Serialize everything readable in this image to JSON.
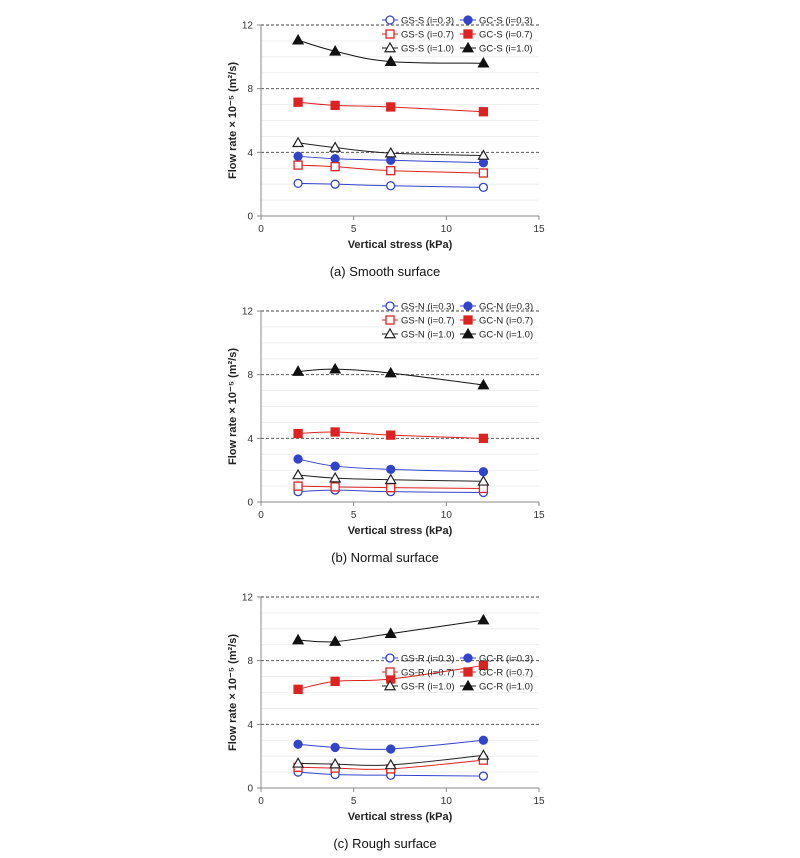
{
  "chart_data": [
    {
      "type": "line",
      "caption": "(a)  Smooth  surface",
      "xlabel": "Vertical stress (kPa)",
      "ylabel": "Flow rate × 10⁻⁵ (m²/s)",
      "xlim": [
        0,
        15
      ],
      "ylim": [
        0,
        12
      ],
      "xticks": [
        0,
        5,
        10,
        15
      ],
      "yticks": [
        0,
        4,
        8,
        12
      ],
      "grid": "horizontal dashed at 4, 8, 12",
      "legend": "top-right",
      "x": [
        2,
        4,
        7,
        12
      ],
      "series": [
        {
          "name": "GS-S (i=0.3)",
          "color": "#3344cc",
          "marker": "circle-open",
          "values": [
            2.05,
            2.0,
            1.9,
            1.8
          ]
        },
        {
          "name": "GC-S (i=0.3)",
          "color": "#3344cc",
          "marker": "circle-filled",
          "values": [
            3.75,
            3.6,
            3.5,
            3.35
          ]
        },
        {
          "name": "GS-S (i=0.7)",
          "color": "#dd2222",
          "marker": "square-open",
          "values": [
            3.2,
            3.1,
            2.85,
            2.7
          ]
        },
        {
          "name": "GC-S (i=0.7)",
          "color": "#dd2222",
          "marker": "square-filled",
          "values": [
            7.15,
            6.95,
            6.85,
            6.55
          ]
        },
        {
          "name": "GS-S (i=1.0)",
          "color": "#222222",
          "marker": "triangle-open",
          "values": [
            4.6,
            4.3,
            3.95,
            3.8
          ]
        },
        {
          "name": "GC-S (i=1.0)",
          "color": "#111111",
          "marker": "triangle-filled",
          "values": [
            11.05,
            10.35,
            9.7,
            9.6
          ]
        }
      ]
    },
    {
      "type": "line",
      "caption": "(b)  Normal  surface",
      "xlabel": "Vertical stress (kPa)",
      "ylabel": "Flow rate × 10⁻⁵ (m²/s)",
      "xlim": [
        0,
        15
      ],
      "ylim": [
        0,
        12
      ],
      "xticks": [
        0,
        5,
        10,
        15
      ],
      "yticks": [
        0,
        4,
        8,
        12
      ],
      "grid": "horizontal dashed at 4, 8, 12",
      "legend": "top-right",
      "x": [
        2,
        4,
        7,
        12
      ],
      "series": [
        {
          "name": "GS-N (i=0.3)",
          "color": "#3344cc",
          "marker": "circle-open",
          "values": [
            0.65,
            0.75,
            0.65,
            0.6
          ]
        },
        {
          "name": "GC-N (i=0.3)",
          "color": "#3344cc",
          "marker": "circle-filled",
          "values": [
            2.7,
            2.25,
            2.05,
            1.9
          ]
        },
        {
          "name": "GS-N (i=0.7)",
          "color": "#dd2222",
          "marker": "square-open",
          "values": [
            1.0,
            0.95,
            0.9,
            0.85
          ]
        },
        {
          "name": "GC-N (i=0.7)",
          "color": "#dd2222",
          "marker": "square-filled",
          "values": [
            4.3,
            4.4,
            4.2,
            4.0
          ]
        },
        {
          "name": "GS-N (i=1.0)",
          "color": "#222222",
          "marker": "triangle-open",
          "values": [
            1.7,
            1.5,
            1.4,
            1.3
          ]
        },
        {
          "name": "GC-N (i=1.0)",
          "color": "#111111",
          "marker": "triangle-filled",
          "values": [
            8.2,
            8.35,
            8.1,
            7.35
          ]
        }
      ]
    },
    {
      "type": "line",
      "caption": "(c)  Rough  surface",
      "xlabel": "Vertical stress (kPa)",
      "ylabel": "Flow rate × 10⁻⁵ (m²/s)",
      "xlim": [
        0,
        15
      ],
      "ylim": [
        0,
        12
      ],
      "xticks": [
        0,
        5,
        10,
        15
      ],
      "yticks": [
        0,
        4,
        8,
        12
      ],
      "grid": "horizontal dashed at 4, 8, 12",
      "legend": "middle-right",
      "x": [
        2,
        4,
        7,
        12
      ],
      "series": [
        {
          "name": "GS-R (i=0.3)",
          "color": "#3344cc",
          "marker": "circle-open",
          "values": [
            1.0,
            0.85,
            0.8,
            0.75
          ]
        },
        {
          "name": "GC-R (i=0.3)",
          "color": "#3344cc",
          "marker": "circle-filled",
          "values": [
            2.75,
            2.55,
            2.45,
            3.0
          ]
        },
        {
          "name": "GS-R (i=0.7)",
          "color": "#dd2222",
          "marker": "square-open",
          "values": [
            1.3,
            1.25,
            1.2,
            1.75
          ]
        },
        {
          "name": "GC-R (i=0.7)",
          "color": "#dd2222",
          "marker": "square-filled",
          "values": [
            6.2,
            6.7,
            6.85,
            7.7
          ]
        },
        {
          "name": "GS-R (i=1.0)",
          "color": "#222222",
          "marker": "triangle-open",
          "values": [
            1.55,
            1.5,
            1.45,
            2.05
          ]
        },
        {
          "name": "GC-R (i=1.0)",
          "color": "#111111",
          "marker": "triangle-filled",
          "values": [
            9.3,
            9.2,
            9.7,
            10.55
          ]
        }
      ]
    }
  ]
}
